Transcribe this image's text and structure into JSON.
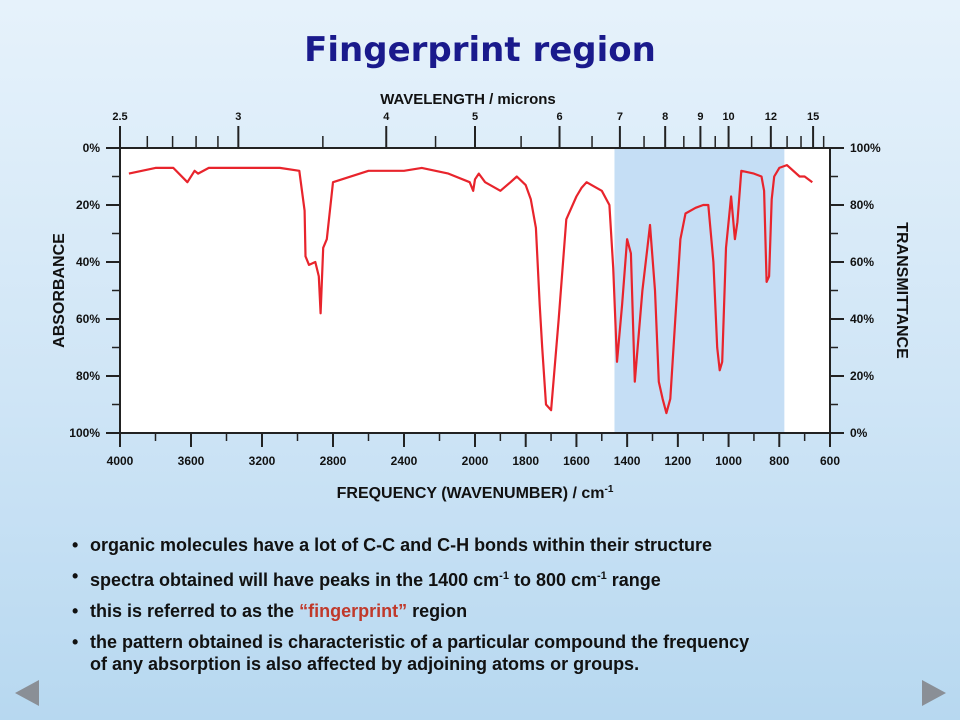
{
  "slide": {
    "title": "Fingerprint region",
    "bullets": [
      {
        "pre": "organic molecules have a lot of C-C and C-H bonds within their structure"
      },
      {
        "pre": "spectra obtained will have peaks in the 1400 cm",
        "sup1": "-1",
        "mid": " to 800 cm",
        "sup2": "-1",
        "post": " range"
      },
      {
        "pre": "this is referred to as the ",
        "highlight": "“fingerprint”",
        "post": " region"
      },
      {
        "pre": "the pattern obtained is characteristic of a particular compound the frequency",
        "line2": "of any absorption is also affected by adjoining atoms or groups."
      }
    ],
    "nav": {
      "prev": "previous slide",
      "next": "next slide"
    },
    "nav_icons": {
      "prev": "triangle-left-icon",
      "next": "triangle-right-icon"
    }
  },
  "chart_data": {
    "type": "line",
    "title": "",
    "top_axis_label": "WAVELENGTH / microns",
    "top_ticks": [
      "2.5",
      "3",
      "4",
      "5",
      "6",
      "7",
      "8",
      "9",
      "10",
      "12",
      "15"
    ],
    "xlabel": "FREQUENCY (WAVENUMBER) / cm",
    "xlabel_sup": "-1",
    "x_ticks": [
      "4000",
      "3600",
      "3200",
      "2800",
      "2400",
      "2000",
      "1800",
      "1600",
      "1400",
      "1200",
      "1000",
      "800",
      "600"
    ],
    "left_axis_label": "ABSORBANCE",
    "left_ticks": [
      "0%",
      "20%",
      "40%",
      "60%",
      "80%",
      "100%"
    ],
    "right_axis_label": "TRANSMITTANCE",
    "right_ticks": [
      "100%",
      "80%",
      "60%",
      "40%",
      "20%",
      "0%"
    ],
    "xlim": [
      4000,
      600
    ],
    "ylim_transmittance": [
      0,
      100
    ],
    "highlight_region": [
      1450,
      780
    ],
    "highlight_color": "#c5def5",
    "line_color": "#e8242c",
    "series": [
      {
        "x": [
          3950,
          3800,
          3700,
          3620,
          3580,
          3560,
          3500,
          3300,
          3100,
          2990,
          2960,
          2955,
          2935,
          2900,
          2880,
          2870,
          2855,
          2835,
          2800,
          2600,
          2400,
          2300,
          2150,
          2030,
          2010,
          2000,
          1985,
          1960,
          1900,
          1860,
          1835,
          1800,
          1780,
          1760,
          1745,
          1735,
          1720,
          1700,
          1670,
          1640,
          1600,
          1580,
          1560,
          1540,
          1500,
          1470,
          1455,
          1440,
          1420,
          1400,
          1385,
          1370,
          1340,
          1320,
          1310,
          1290,
          1275,
          1260,
          1245,
          1230,
          1210,
          1190,
          1170,
          1130,
          1100,
          1080,
          1060,
          1045,
          1035,
          1025,
          1010,
          990,
          975,
          965,
          950,
          900,
          870,
          860,
          850,
          840,
          830,
          820,
          800,
          770,
          720,
          700,
          670
        ],
        "y": [
          91,
          93,
          93,
          88,
          92,
          91,
          93,
          93,
          93,
          92,
          78,
          62,
          59,
          60,
          55,
          42,
          65,
          68,
          88,
          92,
          92,
          93,
          91,
          88,
          85,
          89,
          91,
          88,
          85,
          88,
          90,
          87,
          82,
          72,
          45,
          30,
          10,
          8,
          40,
          75,
          83,
          86,
          88,
          87,
          85,
          80,
          58,
          25,
          45,
          68,
          63,
          18,
          50,
          65,
          73,
          50,
          18,
          12,
          7,
          12,
          40,
          68,
          77,
          79,
          80,
          80,
          60,
          30,
          22,
          25,
          65,
          83,
          68,
          74,
          92,
          91,
          90,
          85,
          53,
          55,
          82,
          90,
          93,
          94,
          90,
          90,
          88
        ]
      }
    ]
  }
}
